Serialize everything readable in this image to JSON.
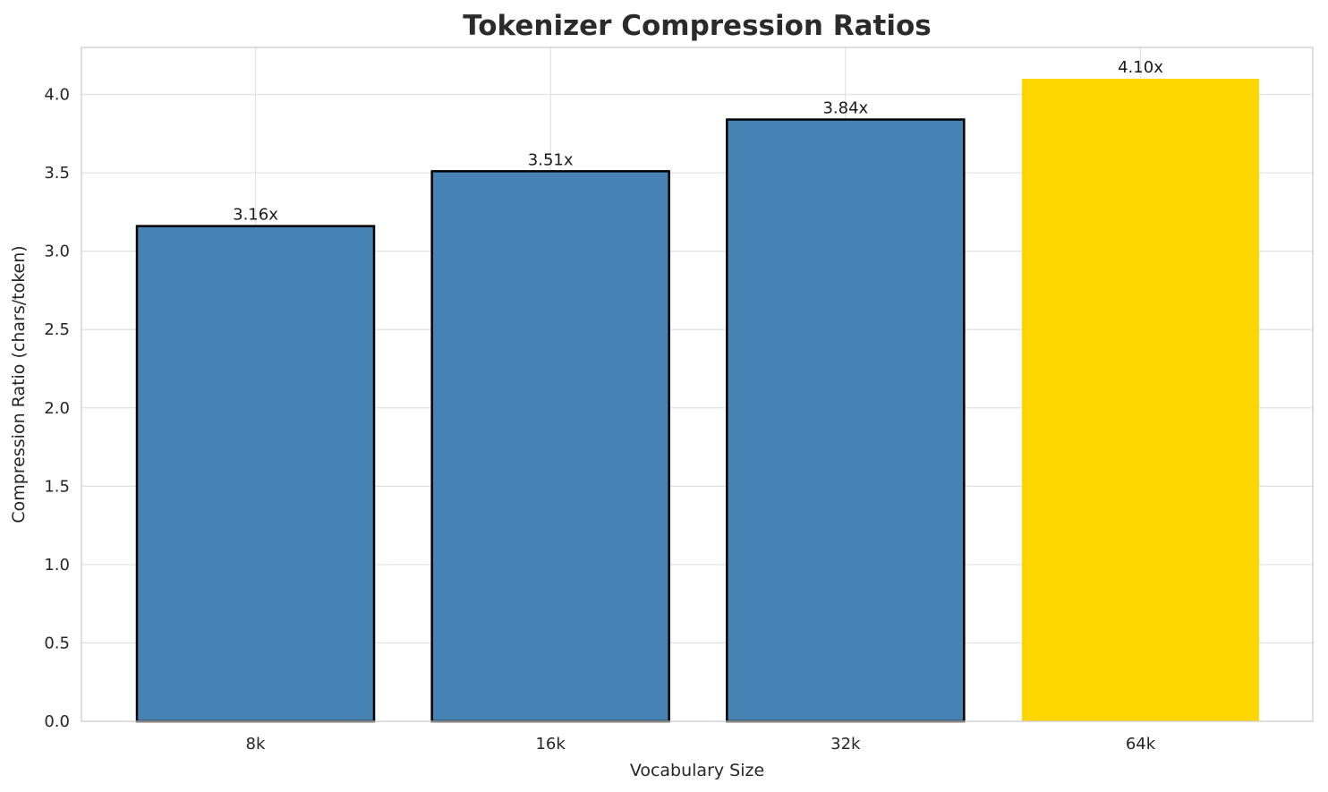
{
  "chart_data": {
    "type": "bar",
    "title": "Tokenizer Compression Ratios",
    "xlabel": "Vocabulary Size",
    "ylabel": "Compression Ratio (chars/token)",
    "categories": [
      "8k",
      "16k",
      "32k",
      "64k"
    ],
    "values": [
      3.16,
      3.51,
      3.84,
      4.1
    ],
    "bar_labels": [
      "3.16x",
      "3.51x",
      "3.84x",
      "4.10x"
    ],
    "ytick_labels": [
      "0.0",
      "0.5",
      "1.0",
      "1.5",
      "2.0",
      "2.5",
      "3.0",
      "3.5",
      "4.0"
    ],
    "ytick_values": [
      0,
      0.5,
      1,
      1.5,
      2,
      2.5,
      3,
      3.5,
      4
    ],
    "ylim": [
      0,
      4.3
    ],
    "grid": "both",
    "legend": "none",
    "highlight_index": 3,
    "colors": {
      "bar_colors": [
        "#4682b4",
        "#4682b4",
        "#4682b4",
        "#ffd700"
      ],
      "bar_edge_colors": [
        "#000000",
        "#000000",
        "#000000",
        "none"
      ],
      "grid": "#e3e3e3",
      "spine": "#cccccc",
      "text": "#262626",
      "title": "#2b2b2b",
      "background": "#ffffff"
    }
  }
}
